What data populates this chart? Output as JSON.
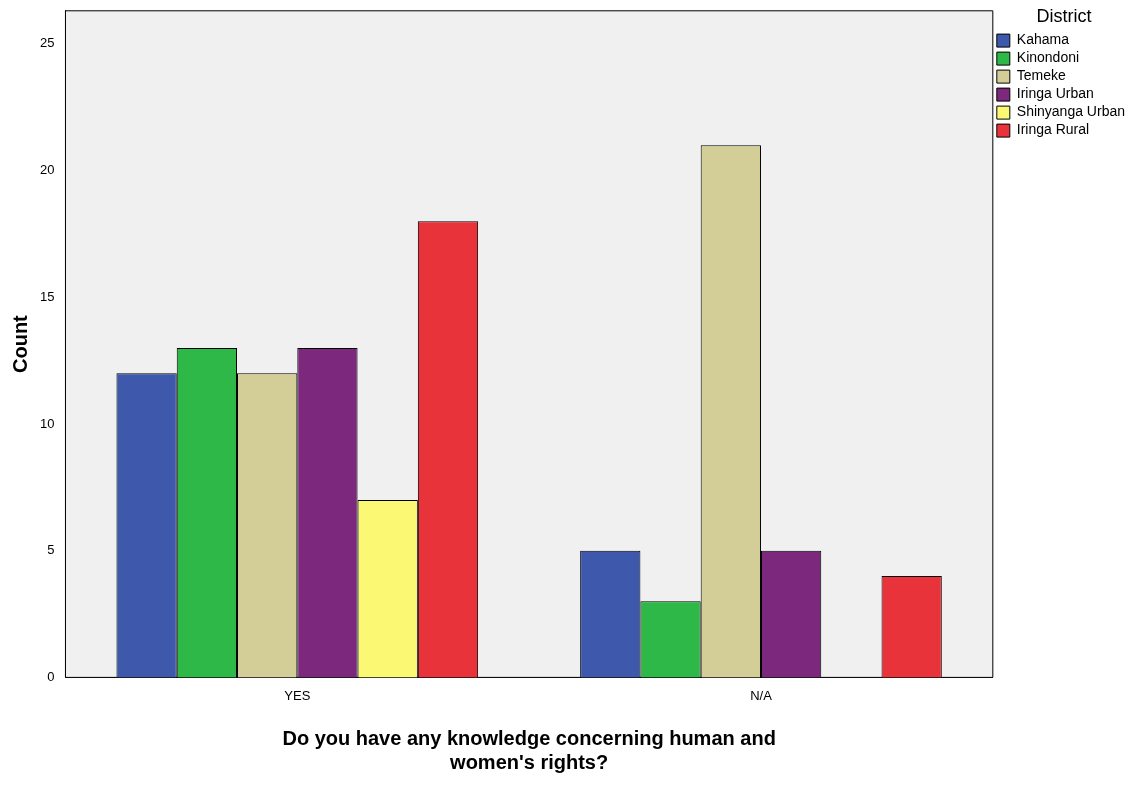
{
  "chart_data": {
    "type": "bar",
    "categories": [
      "YES",
      "N/A"
    ],
    "xlabel": "Do you have any knowledge concerning human and women's rights?",
    "ylabel": "Count",
    "legend_title": "District",
    "series": [
      {
        "name": "Kahama",
        "color": "#3e58ac",
        "values": [
          12,
          5
        ]
      },
      {
        "name": "Kinondoni",
        "color": "#2eb848",
        "values": [
          13,
          3
        ]
      },
      {
        "name": "Temeke",
        "color": "#d3ce97",
        "values": [
          12,
          21
        ]
      },
      {
        "name": "Iringa Urban",
        "color": "#7c287c",
        "values": [
          13,
          5
        ]
      },
      {
        "name": "Shinyanga Urban",
        "color": "#fbf873",
        "values": [
          7,
          null
        ]
      },
      {
        "name": "Iringa Rural",
        "color": "#e8333a",
        "values": [
          18,
          4
        ]
      }
    ],
    "ylim": [
      0,
      26.3
    ],
    "yticks": [
      0,
      5,
      10,
      15,
      20,
      25
    ],
    "grid": false,
    "legend": "top right"
  }
}
